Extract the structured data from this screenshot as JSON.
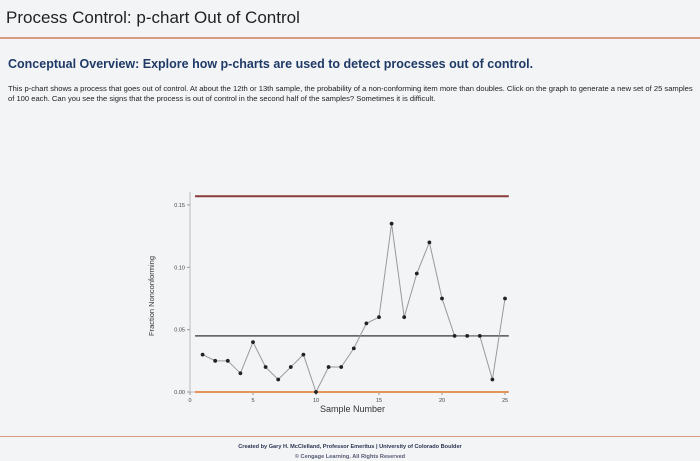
{
  "page": {
    "title": "Process Control: p-chart Out of Control",
    "subtitle": "Conceptual Overview: Explore how p-charts are used to detect processes out of control.",
    "description": "This p-chart shows a process that goes out of control. At about the 12th or 13th sample, the probability of a non-conforming item more than doubles. Click on the graph to generate a new set of 25 samples of 100 each. Can you see the signs that the process is out of control in the second half of the samples? Sometimes it is difficult.",
    "credit": "Created by Gary H. McClelland, Professor Emeritus | University of Colorado Boulder",
    "copyright": "© Cengage Learning. All Rights Reserved"
  },
  "colors": {
    "limit_line": "#8b3a3a",
    "center_line": "#555555",
    "baseline": "#e8935a",
    "data_line": "#999999",
    "point": "#222222",
    "rule": "#d89a84"
  },
  "chart_data": {
    "type": "line",
    "xlabel": "Sample Number",
    "ylabel": "Fraction Nonconforming",
    "xlim": [
      0,
      25
    ],
    "ylim": [
      0,
      0.17
    ],
    "x_ticks": [
      0,
      5,
      10,
      15,
      20,
      25
    ],
    "x_tick_labels": [
      "0",
      "5",
      "10",
      "15",
      "20",
      "25"
    ],
    "y_ticks": [
      0,
      0.05,
      0.1,
      0.15
    ],
    "y_tick_labels": [
      "0.00",
      "0.05",
      "0.10",
      "0.15"
    ],
    "upper_control_limit": 0.157,
    "center_line": 0.045,
    "lower_control_limit": 0,
    "x": [
      1,
      2,
      3,
      4,
      5,
      6,
      7,
      8,
      9,
      10,
      11,
      12,
      13,
      14,
      15,
      16,
      17,
      18,
      19,
      20,
      21,
      22,
      23,
      24,
      25
    ],
    "values": [
      0.03,
      0.025,
      0.025,
      0.015,
      0.04,
      0.02,
      0.01,
      0.02,
      0.03,
      0.0,
      0.02,
      0.02,
      0.035,
      0.055,
      0.06,
      0.135,
      0.06,
      0.095,
      0.12,
      0.075,
      0.045,
      0.045,
      0.045,
      0.01,
      0.075
    ]
  }
}
